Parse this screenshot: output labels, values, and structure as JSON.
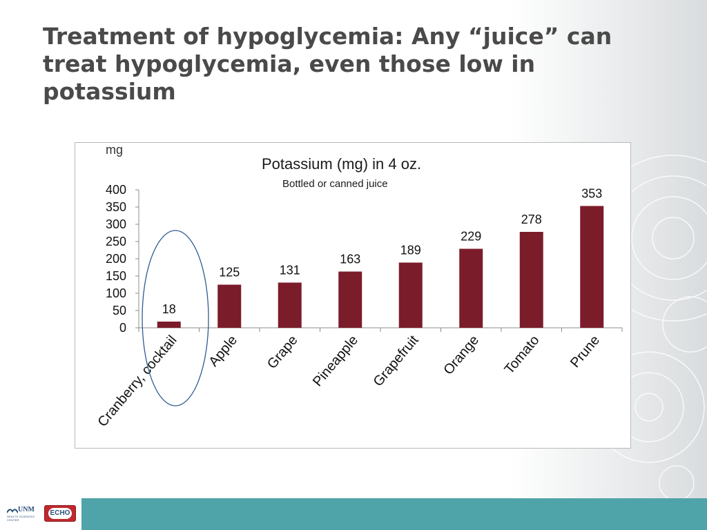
{
  "slide": {
    "title": "Treatment of hypoglycemia: Any “juice” can treat hypoglycemia, even those low in potassium"
  },
  "footer": {
    "unm_logo_text": "UNM",
    "unm_logo_subtext": "HEALTH SCIENCES CENTER",
    "echo_logo_text": "ECHO"
  },
  "colors": {
    "bar": "#7b1c2a",
    "highlight_ellipse": "#2e5a93",
    "footer": "#4fa4aa"
  },
  "chart_data": {
    "type": "bar",
    "title": "Potassium (mg)  in 4 oz.",
    "subtitle": "Bottled or canned juice",
    "unit_label": "mg",
    "categories": [
      "Cranberry, cocktail",
      "Apple",
      "Grape",
      "Pineapple",
      "Grapefruit",
      "Orange",
      "Tomato",
      "Prune"
    ],
    "values": [
      18,
      125,
      131,
      163,
      189,
      229,
      278,
      353
    ],
    "ylim": [
      0,
      400
    ],
    "yticks": [
      0,
      50,
      100,
      150,
      200,
      250,
      300,
      350,
      400
    ],
    "grid": false,
    "legend": "none",
    "highlighted_category": "Cranberry, cocktail"
  }
}
